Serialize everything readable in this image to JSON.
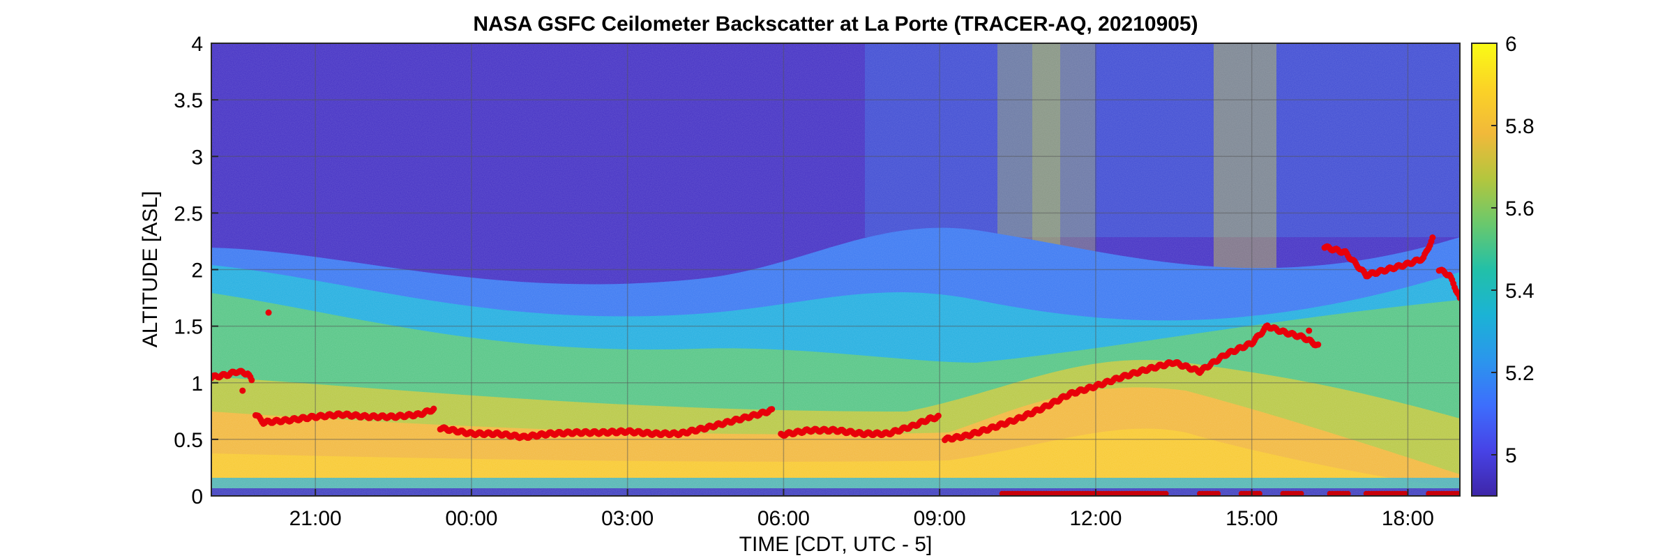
{
  "chart_data": {
    "type": "heatmap",
    "title": "NASA GSFC Ceilometer Backscatter at La Porte (TRACER-AQ, 20210905)",
    "xlabel": "TIME [CDT, UTC - 5]",
    "ylabel": "ALTITUDE [ASL]",
    "x_tick_labels": [
      "21:00",
      "00:00",
      "03:00",
      "06:00",
      "09:00",
      "12:00",
      "15:00",
      "18:00"
    ],
    "x_ticks_hours": [
      21,
      24,
      27,
      30,
      33,
      36,
      39,
      42
    ],
    "xlim_hours": [
      19,
      43
    ],
    "y_tick_labels": [
      "0",
      "0.5",
      "1",
      "1.5",
      "2",
      "2.5",
      "3",
      "3.5",
      "4"
    ],
    "y_ticks": [
      0,
      0.5,
      1,
      1.5,
      2,
      2.5,
      3,
      3.5,
      4
    ],
    "ylim": [
      0,
      4
    ],
    "grid": true,
    "colorbar": {
      "range": [
        4.9,
        6.0
      ],
      "tick_labels": [
        "5",
        "5.2",
        "5.4",
        "5.6",
        "5.8",
        "6"
      ],
      "ticks": [
        5.0,
        5.2,
        5.4,
        5.6,
        5.8,
        6.0
      ],
      "colormap": "parula"
    },
    "pbl_series": {
      "color": "#e8000a",
      "points_hours_km": [
        [
          19.0,
          1.05
        ],
        [
          19.3,
          1.07
        ],
        [
          19.5,
          1.1
        ],
        [
          19.7,
          1.08
        ],
        [
          19.8,
          1.0
        ],
        [
          19.85,
          0.72
        ],
        [
          20.0,
          0.65
        ],
        [
          20.5,
          0.67
        ],
        [
          21.0,
          0.7
        ],
        [
          21.5,
          0.72
        ],
        [
          22.0,
          0.7
        ],
        [
          22.5,
          0.7
        ],
        [
          23.0,
          0.72
        ],
        [
          23.3,
          0.77
        ],
        [
          23.4,
          0.6
        ],
        [
          24.0,
          0.55
        ],
        [
          24.5,
          0.55
        ],
        [
          25.0,
          0.52
        ],
        [
          25.5,
          0.55
        ],
        [
          26.0,
          0.56
        ],
        [
          26.5,
          0.56
        ],
        [
          27.0,
          0.57
        ],
        [
          27.5,
          0.55
        ],
        [
          28.0,
          0.55
        ],
        [
          28.5,
          0.6
        ],
        [
          29.0,
          0.66
        ],
        [
          29.5,
          0.72
        ],
        [
          29.8,
          0.76
        ],
        [
          29.95,
          0.54
        ],
        [
          30.5,
          0.58
        ],
        [
          31.0,
          0.58
        ],
        [
          31.5,
          0.55
        ],
        [
          32.0,
          0.55
        ],
        [
          32.5,
          0.62
        ],
        [
          32.8,
          0.68
        ],
        [
          33.0,
          0.7
        ],
        [
          33.1,
          0.5
        ],
        [
          33.5,
          0.53
        ],
        [
          34.0,
          0.6
        ],
        [
          34.5,
          0.68
        ],
        [
          35.0,
          0.78
        ],
        [
          35.5,
          0.9
        ],
        [
          36.0,
          0.97
        ],
        [
          36.5,
          1.05
        ],
        [
          37.0,
          1.12
        ],
        [
          37.5,
          1.18
        ],
        [
          38.0,
          1.1
        ],
        [
          38.5,
          1.25
        ],
        [
          39.0,
          1.35
        ],
        [
          39.3,
          1.5
        ],
        [
          39.6,
          1.45
        ],
        [
          40.0,
          1.4
        ],
        [
          40.3,
          1.32
        ],
        [
          40.4,
          2.2
        ],
        [
          40.8,
          2.15
        ],
        [
          41.2,
          1.95
        ],
        [
          41.6,
          2.0
        ],
        [
          42.0,
          2.05
        ],
        [
          42.3,
          2.1
        ],
        [
          42.5,
          2.3
        ],
        [
          42.6,
          2.0
        ],
        [
          42.8,
          1.95
        ],
        [
          43.0,
          1.75
        ]
      ],
      "scattered_points_hours_km": [
        [
          19.6,
          0.93
        ],
        [
          20.1,
          1.62
        ],
        [
          40.1,
          1.46
        ]
      ],
      "surface_points_hours": [
        34.2,
        34.6,
        35.0,
        35.4,
        35.8,
        36.2,
        36.6,
        37.0,
        38.0,
        38.8,
        39.6,
        40.5,
        41.2,
        41.6,
        42.4,
        42.8
      ]
    }
  }
}
